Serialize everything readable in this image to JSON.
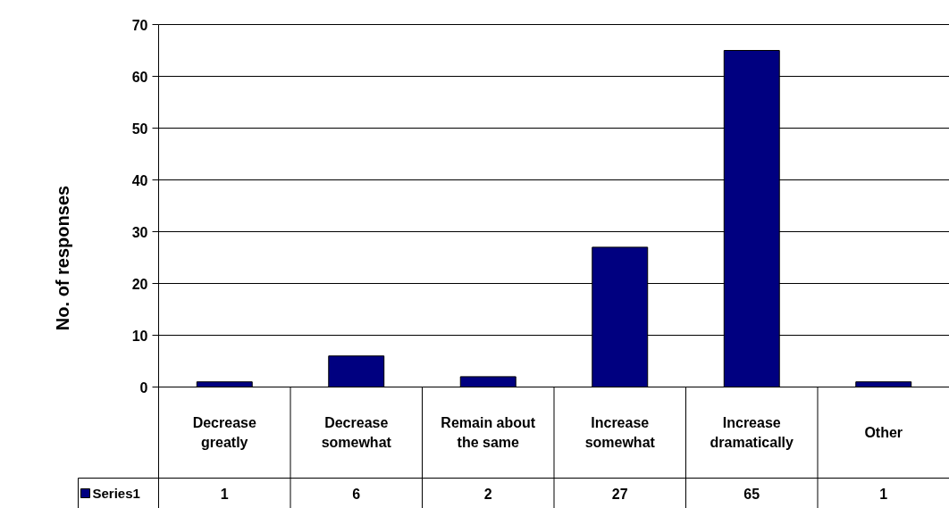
{
  "chart_data": {
    "type": "bar",
    "ylabel": "No. of responses",
    "categories": [
      "Decrease greatly",
      "Decrease somewhat",
      "Remain about the same",
      "Increase somewhat",
      "Increase dramatically",
      "Other"
    ],
    "series": [
      {
        "name": "Series1",
        "color": "#000080",
        "values": [
          1,
          6,
          2,
          27,
          65,
          1
        ]
      }
    ],
    "ylim": [
      0,
      70
    ],
    "yticks": [
      0,
      10,
      20,
      30,
      40,
      50,
      60,
      70
    ],
    "grid": "y",
    "legend": "bottom",
    "data_labels": true
  }
}
